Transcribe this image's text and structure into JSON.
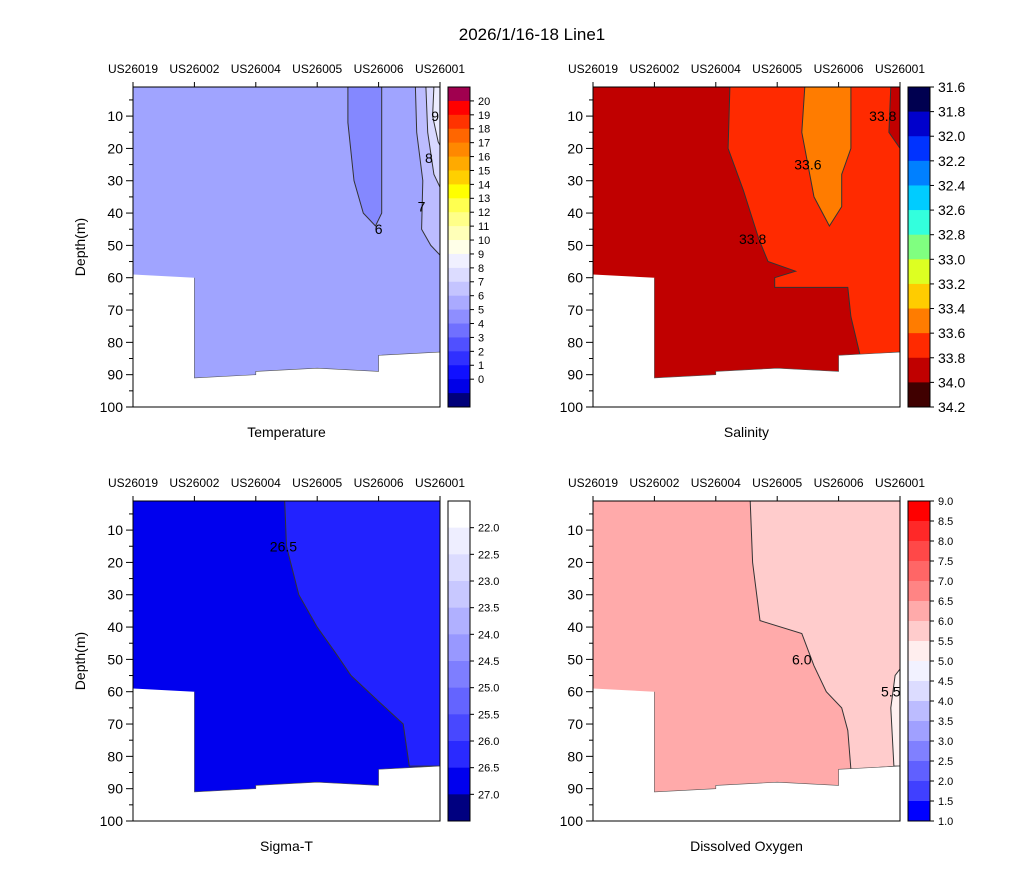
{
  "title": "2026/1/16-18   Line1",
  "chart_data": [
    {
      "type": "heatmap",
      "title": "Temperature",
      "ylabel": "Depth(m)",
      "ylim": [
        1,
        100
      ],
      "yticks": [
        10,
        20,
        30,
        40,
        50,
        60,
        70,
        80,
        90,
        100
      ],
      "stations": [
        "US26019",
        "US26002",
        "US26004",
        "US26005",
        "US26006",
        "US26001"
      ],
      "base_color": "#a0a4ff",
      "regions": [
        {
          "color": "#8488ff",
          "points": [
            [
              3.5,
              1
            ],
            [
              3.5,
              12
            ],
            [
              3.6,
              30
            ],
            [
              3.75,
              40
            ],
            [
              3.95,
              44
            ],
            [
              4.05,
              40
            ],
            [
              4.05,
              1
            ]
          ]
        },
        {
          "color": "#bcbcff",
          "points": [
            [
              4.6,
              1
            ],
            [
              4.62,
              15
            ],
            [
              4.72,
              30
            ],
            [
              4.7,
              45
            ],
            [
              4.85,
              50
            ],
            [
              5,
              53
            ],
            [
              5,
              1
            ]
          ]
        },
        {
          "color": "#d8d8ff",
          "points": [
            [
              4.77,
              1
            ],
            [
              4.8,
              15
            ],
            [
              4.9,
              28
            ],
            [
              5,
              32
            ],
            [
              5,
              1
            ]
          ]
        },
        {
          "color": "#ececff",
          "points": [
            [
              4.9,
              1
            ],
            [
              4.88,
              10
            ],
            [
              4.97,
              18
            ],
            [
              5,
              19
            ],
            [
              5,
              1
            ]
          ]
        }
      ],
      "contour_labels": [
        {
          "text": "6",
          "s": 4.0,
          "d": 45
        },
        {
          "text": "7",
          "s": 4.7,
          "d": 38
        },
        {
          "text": "8",
          "s": 4.82,
          "d": 23
        },
        {
          "text": "9",
          "s": 4.92,
          "d": 10
        }
      ],
      "bottom": [
        [
          0,
          59
        ],
        [
          1,
          60
        ],
        [
          1,
          91
        ],
        [
          2,
          90
        ],
        [
          2,
          89
        ],
        [
          3,
          88
        ],
        [
          4,
          89
        ],
        [
          4,
          84
        ],
        [
          5,
          83
        ]
      ],
      "colorbar": {
        "mode": "interior",
        "labels": [
          "20",
          "19",
          "18",
          "17",
          "16",
          "15",
          "14",
          "13",
          "12",
          "11",
          "10",
          "9",
          "8",
          "7",
          "6",
          "5",
          "4",
          "3",
          "2",
          "1",
          "0"
        ],
        "colors": [
          "#a0004f",
          "#ff0000",
          "#ff3300",
          "#ff6600",
          "#ff8800",
          "#ffaa00",
          "#ffd000",
          "#ffff00",
          "#ffff50",
          "#ffff88",
          "#ffffb8",
          "#ffffe8",
          "#f0f0ff",
          "#dcdcff",
          "#c4c4ff",
          "#aaaaff",
          "#8e8eff",
          "#7070ff",
          "#5050ff",
          "#3030ff",
          "#1010ff",
          "#0000e8",
          "#00007a"
        ]
      }
    },
    {
      "type": "heatmap",
      "title": "Salinity",
      "ylabel": "",
      "ylim": [
        1,
        100
      ],
      "yticks": [
        10,
        20,
        30,
        40,
        50,
        60,
        70,
        80,
        90,
        100
      ],
      "stations": [
        "US26019",
        "US26002",
        "US26004",
        "US26005",
        "US26006",
        "US26001"
      ],
      "base_color": "#c00000",
      "regions": [
        {
          "color": "#ff2a00",
          "points": [
            [
              2.23,
              1
            ],
            [
              2.2,
              20
            ],
            [
              2.45,
              33
            ],
            [
              2.7,
              48
            ],
            [
              2.85,
              55
            ],
            [
              3.3,
              58
            ],
            [
              2.96,
              60
            ],
            [
              2.96,
              63
            ],
            [
              4.15,
              63
            ],
            [
              4.2,
              72
            ],
            [
              4.35,
              84
            ],
            [
              5,
              83
            ],
            [
              5,
              1
            ]
          ]
        },
        {
          "color": "#ff7c00",
          "points": [
            [
              3.45,
              1
            ],
            [
              3.4,
              15
            ],
            [
              3.6,
              35
            ],
            [
              3.85,
              44
            ],
            [
              4.05,
              38
            ],
            [
              4.05,
              28
            ],
            [
              4.2,
              20
            ],
            [
              4.2,
              1
            ]
          ]
        },
        {
          "color": "#c00000",
          "points": [
            [
              4.85,
              1
            ],
            [
              4.82,
              15
            ],
            [
              5,
              20
            ],
            [
              5,
              1
            ]
          ]
        }
      ],
      "contour_labels": [
        {
          "text": "33.6",
          "s": 3.5,
          "d": 25
        },
        {
          "text": "33.8",
          "s": 2.6,
          "d": 48
        },
        {
          "text": "33.8",
          "s": 4.72,
          "d": 10
        }
      ],
      "bottom": [
        [
          0,
          59
        ],
        [
          1,
          60
        ],
        [
          1,
          91
        ],
        [
          2,
          90
        ],
        [
          2,
          89
        ],
        [
          3,
          88
        ],
        [
          4,
          89
        ],
        [
          4,
          84
        ],
        [
          5,
          83
        ]
      ],
      "colorbar": {
        "mode": "edges",
        "labels": [
          "31.6",
          "31.8",
          "32.0",
          "32.2",
          "32.4",
          "32.6",
          "32.8",
          "33.0",
          "33.2",
          "33.4",
          "33.6",
          "33.8",
          "34.0",
          "34.2"
        ],
        "colors": [
          "#000050",
          "#0000cc",
          "#0033ff",
          "#0080ff",
          "#00ccff",
          "#33ffdd",
          "#80ff80",
          "#ddff22",
          "#ffcc00",
          "#ff7c00",
          "#ff2a00",
          "#c00000",
          "#400000"
        ]
      }
    },
    {
      "type": "heatmap",
      "title": "Sigma-T",
      "ylabel": "Depth(m)",
      "ylim": [
        1,
        100
      ],
      "yticks": [
        10,
        20,
        30,
        40,
        50,
        60,
        70,
        80,
        90,
        100
      ],
      "stations": [
        "US26019",
        "US26002",
        "US26004",
        "US26005",
        "US26006",
        "US26001"
      ],
      "base_color": "#0000ee",
      "regions": [
        {
          "color": "#2222ff",
          "points": [
            [
              2.47,
              1
            ],
            [
              2.5,
              15
            ],
            [
              2.7,
              30
            ],
            [
              3,
              40
            ],
            [
              3.3,
              48
            ],
            [
              3.55,
              55
            ],
            [
              4,
              63
            ],
            [
              4.4,
              70
            ],
            [
              4.5,
              83
            ],
            [
              5,
              83
            ],
            [
              5,
              1
            ]
          ]
        }
      ],
      "contour_labels": [
        {
          "text": "26.5",
          "s": 2.45,
          "d": 15
        }
      ],
      "bottom": [
        [
          0,
          59
        ],
        [
          1,
          60
        ],
        [
          1,
          91
        ],
        [
          2,
          90
        ],
        [
          2,
          89
        ],
        [
          3,
          88
        ],
        [
          4,
          89
        ],
        [
          4,
          84
        ],
        [
          5,
          83
        ]
      ],
      "colorbar": {
        "mode": "interior",
        "labels": [
          "22.0",
          "22.5",
          "23.0",
          "23.5",
          "24.0",
          "24.5",
          "25.0",
          "25.5",
          "26.0",
          "26.5",
          "27.0"
        ],
        "colors": [
          "#ffffff",
          "#eeeeff",
          "#dcdcff",
          "#c8c8ff",
          "#b0b0ff",
          "#9898ff",
          "#7e7eff",
          "#6464ff",
          "#4848ff",
          "#2a2aff",
          "#0000ee",
          "#000080"
        ]
      }
    },
    {
      "type": "heatmap",
      "title": "Dissolved Oxygen",
      "ylabel": "",
      "ylim": [
        1,
        100
      ],
      "yticks": [
        10,
        20,
        30,
        40,
        50,
        60,
        70,
        80,
        90,
        100
      ],
      "stations": [
        "US26019",
        "US26002",
        "US26004",
        "US26005",
        "US26006",
        "US26001"
      ],
      "base_color": "#ffaaaa",
      "regions": [
        {
          "color": "#ffcccc",
          "points": [
            [
              2.56,
              1
            ],
            [
              2.6,
              20
            ],
            [
              2.72,
              38
            ],
            [
              3.4,
              42
            ],
            [
              3.6,
              52
            ],
            [
              3.8,
              60
            ],
            [
              4.05,
              65
            ],
            [
              4.15,
              72
            ],
            [
              4.2,
              84
            ],
            [
              5,
              83
            ],
            [
              5,
              1
            ]
          ]
        },
        {
          "color": "#fff0f0",
          "points": [
            [
              4.92,
              55
            ],
            [
              4.85,
              65
            ],
            [
              4.9,
              83
            ],
            [
              5,
              83
            ],
            [
              5,
              53
            ]
          ]
        }
      ],
      "contour_labels": [
        {
          "text": "6.0",
          "s": 3.4,
          "d": 50
        },
        {
          "text": "5.5",
          "s": 4.85,
          "d": 60
        }
      ],
      "bottom": [
        [
          0,
          59
        ],
        [
          1,
          60
        ],
        [
          1,
          91
        ],
        [
          2,
          90
        ],
        [
          2,
          89
        ],
        [
          3,
          88
        ],
        [
          4,
          89
        ],
        [
          4,
          84
        ],
        [
          5,
          83
        ]
      ],
      "colorbar": {
        "mode": "edges",
        "labels": [
          "9.0",
          "8.5",
          "8.0",
          "7.5",
          "7.0",
          "6.5",
          "6.0",
          "5.5",
          "5.0",
          "4.5",
          "4.0",
          "3.5",
          "3.0",
          "2.5",
          "2.0",
          "1.5",
          "1.0"
        ],
        "colors": [
          "#ff0000",
          "#ff2828",
          "#ff4848",
          "#ff6666",
          "#ff8484",
          "#ffaaaa",
          "#ffcccc",
          "#ffeeee",
          "#f2f2ff",
          "#dcdcff",
          "#bcbcff",
          "#a0a0ff",
          "#8080ff",
          "#6060ff",
          "#4040ff",
          "#0000ff"
        ]
      }
    }
  ]
}
